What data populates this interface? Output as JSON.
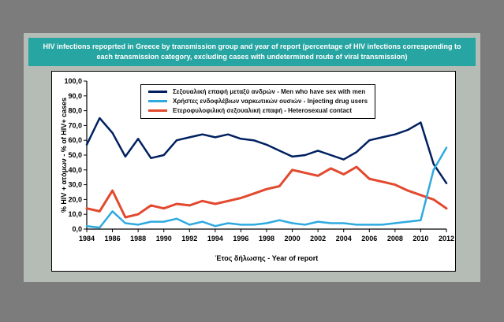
{
  "title": "HIV infections repoprted in Greece by transmission group and year of report (percentage of HIV infections corresponding to each transmission category, excluding cases with undetermined route of viral transmission)",
  "theme": {
    "page_bg": "#7c7c7c",
    "panel_bg": "#b5bcb6",
    "header_bg": "#27a5a2",
    "header_text": "#ffffff"
  },
  "chart_data": {
    "type": "line",
    "title": "HIV infections repoprted in Greece by transmission group and year of report",
    "xlabel": "Έτος δήλωσης - Year of report",
    "ylabel": "% HIV + ατόμων  -  % of HIV+ cases",
    "ylim": [
      0,
      100
    ],
    "ytick_step": 10,
    "ytick_labels": [
      "0,0",
      "10,0",
      "20,0",
      "30,0",
      "40,0",
      "50,0",
      "60,0",
      "70,0",
      "80,0",
      "90,0",
      "100,0"
    ],
    "xtick_labels": [
      "1984",
      "1986",
      "1988",
      "1990",
      "1992",
      "1994",
      "1996",
      "1998",
      "2000",
      "2002",
      "2004",
      "2006",
      "2008",
      "2010",
      "2012"
    ],
    "grid": false,
    "legend_position": "top-center",
    "x": [
      1984,
      1985,
      1986,
      1987,
      1988,
      1989,
      1990,
      1991,
      1992,
      1993,
      1994,
      1995,
      1996,
      1997,
      1998,
      1999,
      2000,
      2001,
      2002,
      2003,
      2004,
      2005,
      2006,
      2007,
      2008,
      2009,
      2010,
      2011,
      2012
    ],
    "series": [
      {
        "id": "msm",
        "name": "Σεξουαλική επαφή μεταξύ ανδρών - Men who have sex with men",
        "color": "#002060",
        "line_width": 2.5,
        "values": [
          57,
          75,
          65,
          49,
          61,
          48,
          50,
          60,
          62,
          64,
          62,
          64,
          61,
          60,
          57,
          53,
          49,
          50,
          53,
          50,
          47,
          52,
          60,
          62,
          64,
          67,
          72,
          44,
          31
        ]
      },
      {
        "id": "idu",
        "name": "Χρήστες ενδοφλέβιων ναρκωτικών ουσιών - Injecting drug users",
        "color": "#2ea9e0",
        "line_width": 2.5,
        "values": [
          2,
          1,
          12,
          4,
          3,
          5,
          5,
          7,
          3,
          5,
          2,
          4,
          3,
          3,
          4,
          6,
          4,
          3,
          5,
          4,
          4,
          3,
          3,
          3,
          4,
          5,
          6,
          40,
          55
        ]
      },
      {
        "id": "het",
        "name": "Ετεροφυλοφιλική σεξουαλική επαφή - Heterosexual contact",
        "color": "#e2492e",
        "line_width": 3,
        "values": [
          14,
          12,
          26,
          8,
          10,
          16,
          14,
          17,
          16,
          19,
          17,
          19,
          21,
          24,
          27,
          29,
          40,
          38,
          36,
          41,
          37,
          42,
          34,
          32,
          30,
          26,
          23,
          20,
          14
        ]
      }
    ]
  }
}
